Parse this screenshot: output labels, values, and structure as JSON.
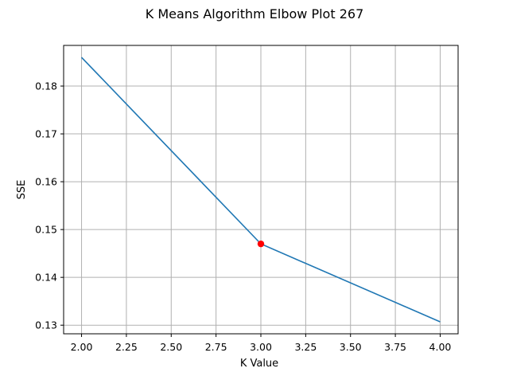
{
  "chart_data": {
    "type": "line",
    "title": "K Means Algorithm Elbow Plot 267",
    "xlabel": "K Value",
    "ylabel": "SSE",
    "x": [
      2,
      3,
      4
    ],
    "series": [
      {
        "values": [
          0.186,
          0.147,
          0.1307
        ]
      }
    ],
    "highlight_point": {
      "x": 3,
      "y": 0.147
    },
    "xlim": [
      1.9,
      4.1
    ],
    "ylim": [
      0.1282,
      0.1885
    ],
    "xticks": [
      2.0,
      2.25,
      2.5,
      2.75,
      3.0,
      3.25,
      3.5,
      3.75,
      4.0
    ],
    "xtick_labels": [
      "2.00",
      "2.25",
      "2.50",
      "2.75",
      "3.00",
      "3.25",
      "3.50",
      "3.75",
      "4.00"
    ],
    "yticks": [
      0.13,
      0.14,
      0.15,
      0.16,
      0.17,
      0.18
    ],
    "ytick_labels": [
      "0.13",
      "0.14",
      "0.15",
      "0.16",
      "0.17",
      "0.18"
    ],
    "grid": true,
    "colors": {
      "line": "#1f77b4",
      "highlight": "#ff0000",
      "grid": "#b0b0b0",
      "axes": "#000000"
    }
  }
}
